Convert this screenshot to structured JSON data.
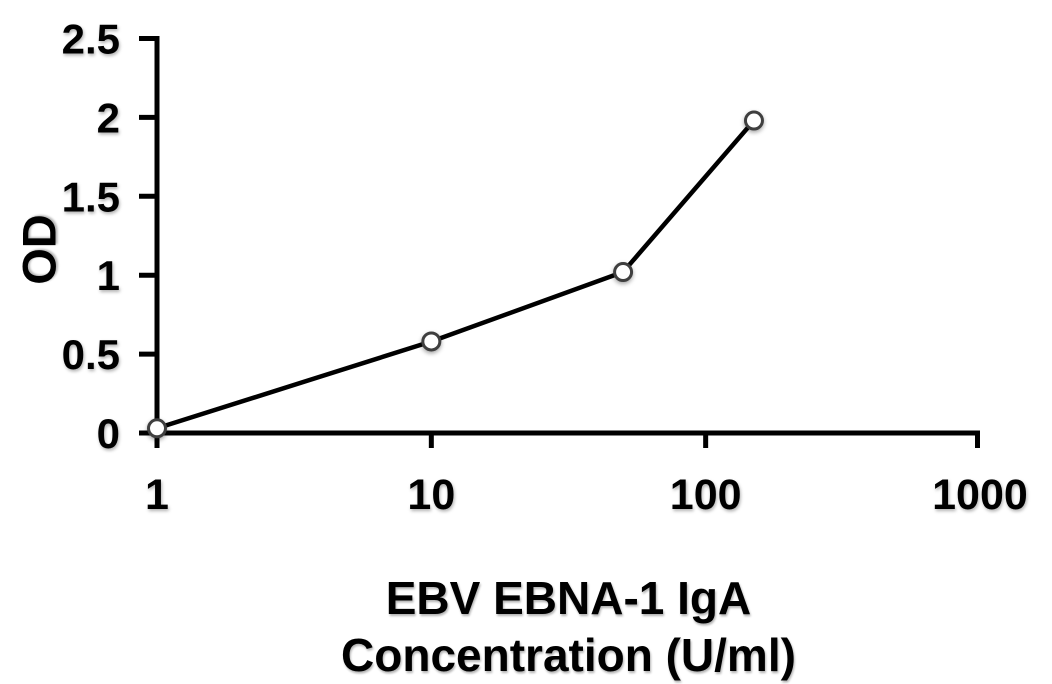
{
  "figure": {
    "background": "#ffffff",
    "axis_color": "#000000",
    "text_color": "#000000"
  },
  "chart_data": {
    "type": "line",
    "title": "",
    "xlabel_line1": "EBV EBNA-1 IgA",
    "xlabel_line2": "Concentration (U/ml)",
    "ylabel": "OD",
    "x_scale": "log10",
    "xlim": [
      1,
      1000
    ],
    "ylim": [
      0,
      2.5
    ],
    "x_ticks": [
      1,
      10,
      100,
      1000
    ],
    "x_tick_labels": [
      "1",
      "10",
      "100",
      "1000"
    ],
    "y_ticks": [
      0,
      0.5,
      1,
      1.5,
      2,
      2.5
    ],
    "y_tick_labels": [
      "0",
      "0.5",
      "1",
      "1.5",
      "2",
      "2.5"
    ],
    "grid": false,
    "legend_position": "none",
    "series": [
      {
        "x": [
          1,
          10,
          50,
          150
        ],
        "y": [
          0.03,
          0.58,
          1.02,
          1.98
        ],
        "line_color": "#000000",
        "marker": "open-circle",
        "marker_fill": "#ffffff",
        "marker_stroke": "#3f3f3f"
      }
    ]
  }
}
